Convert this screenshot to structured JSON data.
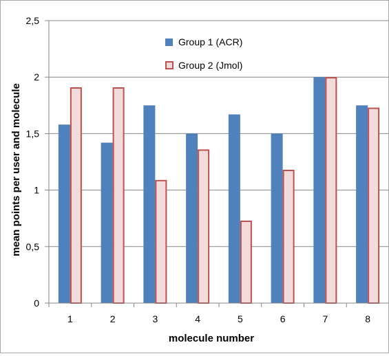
{
  "chart_data": {
    "type": "bar",
    "title": "",
    "xlabel": "molecule number",
    "ylabel": "mean points per user and molecule",
    "categories": [
      "1",
      "2",
      "3",
      "4",
      "5",
      "6",
      "7",
      "8"
    ],
    "series": [
      {
        "name": "Group 1 (ACR)",
        "values": [
          1.58,
          1.42,
          1.75,
          1.5,
          1.67,
          1.5,
          2.0,
          1.75
        ],
        "fill": "#4f81bd",
        "stroke": "#4f81bd"
      },
      {
        "name": "Group 2 (Jmol)",
        "values": [
          1.91,
          1.91,
          1.09,
          1.36,
          0.73,
          1.18,
          2.0,
          1.73
        ],
        "fill": "#f2dcdb",
        "stroke": "#c0504d"
      }
    ],
    "ylim": [
      0,
      2.5
    ],
    "yticks": [
      0,
      0.5,
      1,
      1.5,
      2,
      2.5
    ],
    "ytick_labels": [
      "0",
      "0,5",
      "1",
      "1,5",
      "2",
      "2,5"
    ],
    "grid": "horizontal",
    "legend_position": "top-center",
    "colors": {
      "gridline": "#868686",
      "axis": "#868686",
      "frame": "#a6a6a6"
    }
  }
}
